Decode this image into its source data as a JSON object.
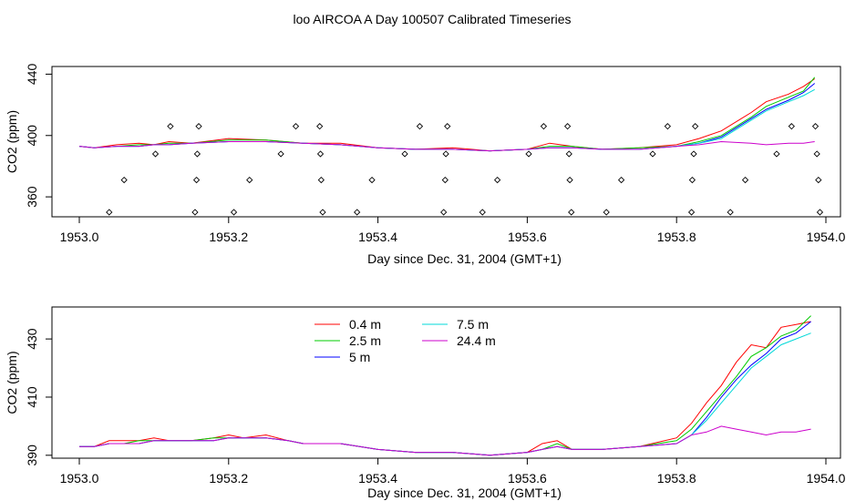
{
  "title": "loo AIRCOA A  Day 100507  Calibrated Timeseries",
  "chart_data": [
    {
      "type": "scatter",
      "xlabel": "Day since Dec. 31, 2004 (GMT+1)",
      "ylabel": "CO2 (ppm)",
      "xlim": [
        1953.0,
        1954.0
      ],
      "ylim": [
        347,
        445
      ],
      "xticks": [
        "1953.0",
        "1953.2",
        "1953.4",
        "1953.6",
        "1953.8",
        "1954.0"
      ],
      "yticks": [
        "360",
        "400",
        "440"
      ],
      "grid": false,
      "markers": {
        "shape": "diamond",
        "points": [
          [
            1953.04,
            350
          ],
          [
            1953.06,
            371
          ],
          [
            1953.102,
            388
          ],
          [
            1953.122,
            406
          ],
          [
            1953.155,
            350
          ],
          [
            1953.157,
            371
          ],
          [
            1953.158,
            388
          ],
          [
            1953.16,
            406
          ],
          [
            1953.207,
            350
          ],
          [
            1953.228,
            371
          ],
          [
            1953.27,
            388
          ],
          [
            1953.29,
            406
          ],
          [
            1953.322,
            406
          ],
          [
            1953.323,
            388
          ],
          [
            1953.324,
            371
          ],
          [
            1953.326,
            350
          ],
          [
            1953.372,
            350
          ],
          [
            1953.392,
            371
          ],
          [
            1953.436,
            388
          ],
          [
            1953.456,
            406
          ],
          [
            1953.488,
            350
          ],
          [
            1953.49,
            371
          ],
          [
            1953.491,
            388
          ],
          [
            1953.493,
            406
          ],
          [
            1953.54,
            350
          ],
          [
            1953.56,
            371
          ],
          [
            1953.602,
            388
          ],
          [
            1953.622,
            406
          ],
          [
            1953.654,
            406
          ],
          [
            1953.656,
            388
          ],
          [
            1953.657,
            371
          ],
          [
            1953.659,
            350
          ],
          [
            1953.706,
            350
          ],
          [
            1953.726,
            371
          ],
          [
            1953.768,
            388
          ],
          [
            1953.788,
            406
          ],
          [
            1953.82,
            350
          ],
          [
            1953.821,
            371
          ],
          [
            1953.823,
            388
          ],
          [
            1953.825,
            406
          ],
          [
            1953.872,
            350
          ],
          [
            1953.892,
            371
          ],
          [
            1953.934,
            388
          ],
          [
            1953.954,
            406
          ],
          [
            1953.986,
            406
          ],
          [
            1953.988,
            388
          ],
          [
            1953.99,
            371
          ],
          [
            1953.992,
            350
          ]
        ]
      },
      "series": [
        {
          "color": "#ff0000",
          "x": [
            1953.0,
            1953.02,
            1953.05,
            1953.08,
            1953.1,
            1953.12,
            1953.15,
            1953.2,
            1953.25,
            1953.3,
            1953.35,
            1953.4,
            1953.45,
            1953.5,
            1953.55,
            1953.6,
            1953.63,
            1953.66,
            1953.7,
            1953.75,
            1953.8,
            1953.83,
            1953.86,
            1953.9,
            1953.92,
            1953.95,
            1953.97,
            1953.985
          ],
          "y": [
            393,
            392,
            394,
            395,
            394,
            396,
            395,
            398,
            397,
            395,
            395,
            392,
            391,
            392,
            390,
            391,
            395,
            393,
            391,
            392,
            394,
            398,
            403,
            415,
            422,
            427,
            432,
            437
          ]
        },
        {
          "color": "#00cc00",
          "x": [
            1953.0,
            1953.02,
            1953.05,
            1953.08,
            1953.1,
            1953.12,
            1953.15,
            1953.2,
            1953.25,
            1953.3,
            1953.35,
            1953.4,
            1953.45,
            1953.5,
            1953.55,
            1953.6,
            1953.63,
            1953.66,
            1953.7,
            1953.75,
            1953.8,
            1953.83,
            1953.86,
            1953.9,
            1953.92,
            1953.95,
            1953.97,
            1953.985
          ],
          "y": [
            393,
            392,
            393,
            394,
            394,
            395,
            395,
            397,
            397,
            395,
            394,
            392,
            391,
            391,
            390,
            391,
            393,
            393,
            391,
            392,
            393,
            396,
            400,
            412,
            419,
            425,
            429,
            438
          ]
        },
        {
          "color": "#0000ff",
          "x": [
            1953.0,
            1953.02,
            1953.05,
            1953.08,
            1953.1,
            1953.12,
            1953.15,
            1953.2,
            1953.25,
            1953.3,
            1953.35,
            1953.4,
            1953.45,
            1953.5,
            1953.55,
            1953.6,
            1953.63,
            1953.66,
            1953.7,
            1953.75,
            1953.8,
            1953.83,
            1953.86,
            1953.9,
            1953.92,
            1953.95,
            1953.97,
            1953.985
          ],
          "y": [
            393,
            392,
            393,
            393,
            394,
            394,
            395,
            396,
            396,
            395,
            394,
            392,
            391,
            391,
            390,
            391,
            392,
            392,
            391,
            391,
            393,
            395,
            399,
            411,
            417,
            423,
            428,
            434
          ]
        },
        {
          "color": "#00d8d8",
          "x": [
            1953.0,
            1953.02,
            1953.05,
            1953.08,
            1953.1,
            1953.12,
            1953.15,
            1953.2,
            1953.25,
            1953.3,
            1953.35,
            1953.4,
            1953.45,
            1953.5,
            1953.55,
            1953.6,
            1953.63,
            1953.66,
            1953.7,
            1953.75,
            1953.8,
            1953.83,
            1953.86,
            1953.9,
            1953.92,
            1953.95,
            1953.97,
            1953.985
          ],
          "y": [
            393,
            392,
            393,
            393,
            394,
            394,
            395,
            396,
            396,
            395,
            394,
            392,
            391,
            391,
            390,
            391,
            392,
            392,
            391,
            391,
            393,
            395,
            398,
            410,
            416,
            422,
            426,
            430
          ]
        },
        {
          "color": "#cc00cc",
          "x": [
            1953.0,
            1953.02,
            1953.05,
            1953.08,
            1953.1,
            1953.12,
            1953.15,
            1953.2,
            1953.25,
            1953.3,
            1953.35,
            1953.4,
            1953.45,
            1953.5,
            1953.55,
            1953.6,
            1953.63,
            1953.66,
            1953.7,
            1953.75,
            1953.8,
            1953.83,
            1953.86,
            1953.9,
            1953.92,
            1953.95,
            1953.97,
            1953.985
          ],
          "y": [
            393,
            392,
            393,
            393,
            394,
            394,
            395,
            396,
            396,
            395,
            394,
            392,
            391,
            391,
            390,
            391,
            392,
            392,
            391,
            391,
            393,
            394,
            396,
            395,
            394,
            395,
            395,
            396
          ]
        }
      ]
    },
    {
      "type": "line",
      "xlabel": "Day since Dec. 31, 2004 (GMT+1)",
      "ylabel": "CO2 (ppm)",
      "xlim": [
        1953.0,
        1954.0
      ],
      "ylim": [
        389,
        441
      ],
      "xticks": [
        "1953.0",
        "1953.2",
        "1953.4",
        "1953.6",
        "1953.8",
        "1954.0"
      ],
      "yticks": [
        "390",
        "410",
        "430"
      ],
      "grid": false,
      "legend": {
        "placement": "top-left",
        "entries": [
          {
            "label": "0.4 m",
            "color": "#ff0000"
          },
          {
            "label": "2.5 m",
            "color": "#00cc00"
          },
          {
            "label": "5 m",
            "color": "#0000ff"
          },
          {
            "label": "7.5 m",
            "color": "#00d8d8"
          },
          {
            "label": "24.4 m",
            "color": "#cc00cc"
          }
        ]
      },
      "series": [
        {
          "name": "0.4 m",
          "color": "#ff0000",
          "x": [
            1953.0,
            1953.02,
            1953.04,
            1953.06,
            1953.08,
            1953.1,
            1953.12,
            1953.15,
            1953.18,
            1953.2,
            1953.22,
            1953.25,
            1953.28,
            1953.3,
            1953.35,
            1953.4,
            1953.45,
            1953.5,
            1953.55,
            1953.6,
            1953.62,
            1953.64,
            1953.66,
            1953.7,
            1953.75,
            1953.8,
            1953.82,
            1953.84,
            1953.86,
            1953.88,
            1953.9,
            1953.92,
            1953.94,
            1953.96,
            1953.98
          ],
          "y": [
            393,
            393,
            395,
            395,
            395,
            396,
            395,
            395,
            396,
            397,
            396,
            397,
            395,
            394,
            394,
            392,
            391,
            391,
            390,
            391,
            394,
            395,
            392,
            392,
            393,
            396,
            401,
            408,
            414,
            422,
            428,
            427,
            434,
            435,
            436
          ]
        },
        {
          "name": "2.5 m",
          "color": "#00cc00",
          "x": [
            1953.0,
            1953.02,
            1953.04,
            1953.06,
            1953.08,
            1953.1,
            1953.12,
            1953.15,
            1953.18,
            1953.2,
            1953.22,
            1953.25,
            1953.28,
            1953.3,
            1953.35,
            1953.4,
            1953.45,
            1953.5,
            1953.55,
            1953.6,
            1953.62,
            1953.64,
            1953.66,
            1953.7,
            1953.75,
            1953.8,
            1953.82,
            1953.84,
            1953.86,
            1953.88,
            1953.9,
            1953.92,
            1953.94,
            1953.96,
            1953.98
          ],
          "y": [
            393,
            393,
            394,
            394,
            395,
            395,
            395,
            395,
            396,
            396,
            396,
            396,
            395,
            394,
            394,
            392,
            391,
            391,
            390,
            391,
            392,
            394,
            392,
            392,
            393,
            395,
            399,
            405,
            411,
            417,
            424,
            427,
            431,
            433,
            438
          ]
        },
        {
          "name": "5 m",
          "color": "#0000ff",
          "x": [
            1953.0,
            1953.02,
            1953.04,
            1953.06,
            1953.08,
            1953.1,
            1953.12,
            1953.15,
            1953.18,
            1953.2,
            1953.22,
            1953.25,
            1953.28,
            1953.3,
            1953.35,
            1953.4,
            1953.45,
            1953.5,
            1953.55,
            1953.6,
            1953.62,
            1953.64,
            1953.66,
            1953.7,
            1953.75,
            1953.8,
            1953.82,
            1953.84,
            1953.86,
            1953.88,
            1953.9,
            1953.92,
            1953.94,
            1953.96,
            1953.98
          ],
          "y": [
            393,
            393,
            394,
            394,
            394,
            395,
            395,
            395,
            395,
            396,
            396,
            396,
            395,
            394,
            394,
            392,
            391,
            391,
            390,
            391,
            392,
            393,
            392,
            392,
            393,
            394,
            397,
            403,
            410,
            416,
            421,
            425,
            430,
            432,
            436
          ]
        },
        {
          "name": "7.5 m",
          "color": "#00d8d8",
          "x": [
            1953.0,
            1953.02,
            1953.04,
            1953.06,
            1953.08,
            1953.1,
            1953.12,
            1953.15,
            1953.18,
            1953.2,
            1953.22,
            1953.25,
            1953.28,
            1953.3,
            1953.35,
            1953.4,
            1953.45,
            1953.5,
            1953.55,
            1953.6,
            1953.62,
            1953.64,
            1953.66,
            1953.7,
            1953.75,
            1953.8,
            1953.82,
            1953.84,
            1953.86,
            1953.88,
            1953.9,
            1953.92,
            1953.94,
            1953.96,
            1953.98
          ],
          "y": [
            393,
            393,
            394,
            394,
            394,
            395,
            395,
            395,
            395,
            396,
            396,
            396,
            395,
            394,
            394,
            392,
            391,
            391,
            390,
            391,
            392,
            393,
            392,
            392,
            393,
            394,
            397,
            402,
            408,
            414,
            420,
            424,
            428,
            430,
            432
          ]
        },
        {
          "name": "24.4 m",
          "color": "#cc00cc",
          "x": [
            1953.0,
            1953.02,
            1953.04,
            1953.06,
            1953.08,
            1953.1,
            1953.12,
            1953.15,
            1953.18,
            1953.2,
            1953.22,
            1953.25,
            1953.28,
            1953.3,
            1953.35,
            1953.4,
            1953.45,
            1953.5,
            1953.55,
            1953.6,
            1953.62,
            1953.64,
            1953.66,
            1953.7,
            1953.75,
            1953.8,
            1953.82,
            1953.84,
            1953.86,
            1953.88,
            1953.9,
            1953.92,
            1953.94,
            1953.96,
            1953.98
          ],
          "y": [
            393,
            393,
            394,
            394,
            394,
            395,
            395,
            395,
            395,
            396,
            396,
            396,
            395,
            394,
            394,
            392,
            391,
            391,
            390,
            391,
            392,
            393,
            392,
            392,
            393,
            394,
            397,
            398,
            400,
            399,
            398,
            397,
            398,
            398,
            399
          ]
        }
      ]
    }
  ]
}
